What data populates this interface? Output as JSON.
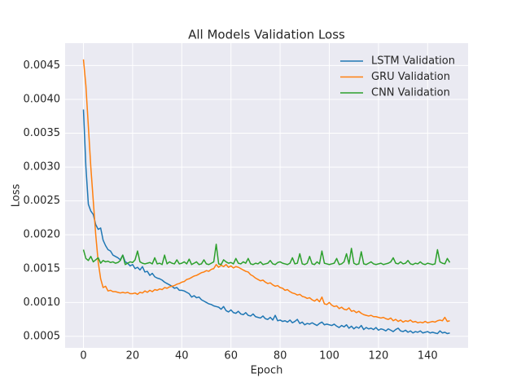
{
  "chart_data": {
    "type": "line",
    "title": "All Models Validation Loss",
    "x_label": "Epoch",
    "y_label": "Loss",
    "x": [
      0,
      1,
      2,
      3,
      4,
      5,
      6,
      7,
      8,
      9,
      10,
      11,
      12,
      13,
      14,
      15,
      16,
      17,
      18,
      19,
      20,
      21,
      22,
      23,
      24,
      25,
      26,
      27,
      28,
      29,
      30,
      31,
      32,
      33,
      34,
      35,
      36,
      37,
      38,
      39,
      40,
      41,
      42,
      43,
      44,
      45,
      46,
      47,
      48,
      49,
      50,
      51,
      52,
      53,
      54,
      55,
      56,
      57,
      58,
      59,
      60,
      61,
      62,
      63,
      64,
      65,
      66,
      67,
      68,
      69,
      70,
      71,
      72,
      73,
      74,
      75,
      76,
      77,
      78,
      79,
      80,
      81,
      82,
      83,
      84,
      85,
      86,
      87,
      88,
      89,
      90,
      91,
      92,
      93,
      94,
      95,
      96,
      97,
      98,
      99,
      100,
      101,
      102,
      103,
      104,
      105,
      106,
      107,
      108,
      109,
      110,
      111,
      112,
      113,
      114,
      115,
      116,
      117,
      118,
      119,
      120,
      121,
      122,
      123,
      124,
      125,
      126,
      127,
      128,
      129,
      130,
      131,
      132,
      133,
      134,
      135,
      136,
      137,
      138,
      139,
      140,
      141,
      142,
      143,
      144,
      145,
      146,
      147,
      148,
      149
    ],
    "series": [
      {
        "name": "LSTM Validation",
        "color": "#1f77b4",
        "values": [
          0.00385,
          0.003,
          0.00245,
          0.00235,
          0.0023,
          0.00215,
          0.00208,
          0.0021,
          0.00192,
          0.00184,
          0.00178,
          0.00176,
          0.0017,
          0.00168,
          0.00166,
          0.00163,
          0.0017,
          0.0016,
          0.00158,
          0.00154,
          0.00156,
          0.0015,
          0.00152,
          0.00148,
          0.00153,
          0.00145,
          0.00146,
          0.0014,
          0.00143,
          0.00138,
          0.00136,
          0.00135,
          0.00133,
          0.0013,
          0.00128,
          0.00126,
          0.00124,
          0.00121,
          0.00122,
          0.00118,
          0.00118,
          0.00117,
          0.00115,
          0.00113,
          0.00108,
          0.0011,
          0.00107,
          0.00108,
          0.00104,
          0.00102,
          0.001,
          0.00098,
          0.00097,
          0.00095,
          0.00094,
          0.00093,
          0.0009,
          0.00094,
          0.00088,
          0.00086,
          0.00089,
          0.00085,
          0.00084,
          0.00087,
          0.00083,
          0.00082,
          0.00085,
          0.00081,
          0.0008,
          0.00083,
          0.00079,
          0.00078,
          0.00077,
          0.0008,
          0.00076,
          0.00075,
          0.00078,
          0.00074,
          0.00081,
          0.00073,
          0.00074,
          0.00072,
          0.00073,
          0.00071,
          0.00074,
          0.0007,
          0.00072,
          0.00075,
          0.00069,
          0.00071,
          0.00067,
          0.00069,
          0.00068,
          0.0007,
          0.00068,
          0.00066,
          0.00069,
          0.00071,
          0.00067,
          0.00068,
          0.00067,
          0.00066,
          0.00068,
          0.00065,
          0.00063,
          0.00066,
          0.00064,
          0.00067,
          0.00062,
          0.00065,
          0.00061,
          0.00064,
          0.00062,
          0.00066,
          0.0006,
          0.00063,
          0.00061,
          0.00062,
          0.0006,
          0.00063,
          0.00059,
          0.00061,
          0.0006,
          0.00058,
          0.00061,
          0.00059,
          0.00057,
          0.0006,
          0.00062,
          0.00058,
          0.00057,
          0.00059,
          0.00056,
          0.00058,
          0.00055,
          0.00057,
          0.00056,
          0.00058,
          0.00055,
          0.00056,
          0.00057,
          0.00055,
          0.00056,
          0.00055,
          0.00054,
          0.00058,
          0.00055,
          0.00056,
          0.00054,
          0.00055
        ]
      },
      {
        "name": "GRU Validation",
        "color": "#ff7f0e",
        "values": [
          0.00459,
          0.0042,
          0.0036,
          0.003,
          0.0025,
          0.002,
          0.0016,
          0.00135,
          0.00122,
          0.00124,
          0.00117,
          0.00118,
          0.00116,
          0.00116,
          0.00115,
          0.00114,
          0.00115,
          0.00114,
          0.00115,
          0.00113,
          0.00113,
          0.00114,
          0.00112,
          0.00115,
          0.00114,
          0.00117,
          0.00115,
          0.00118,
          0.00116,
          0.00119,
          0.00118,
          0.0012,
          0.00119,
          0.00122,
          0.00121,
          0.00123,
          0.00124,
          0.00125,
          0.00127,
          0.00128,
          0.0013,
          0.00131,
          0.00134,
          0.00135,
          0.00137,
          0.00139,
          0.0014,
          0.00142,
          0.00144,
          0.00145,
          0.00147,
          0.00146,
          0.00149,
          0.0015,
          0.00156,
          0.00152,
          0.00155,
          0.00153,
          0.00156,
          0.00152,
          0.00154,
          0.00151,
          0.00153,
          0.00152,
          0.0015,
          0.00148,
          0.00146,
          0.00145,
          0.00141,
          0.00139,
          0.00136,
          0.00134,
          0.00132,
          0.00133,
          0.0013,
          0.00128,
          0.00129,
          0.00126,
          0.00124,
          0.00125,
          0.00122,
          0.00121,
          0.00118,
          0.00119,
          0.00116,
          0.00114,
          0.00113,
          0.00111,
          0.00112,
          0.00109,
          0.00108,
          0.00106,
          0.00107,
          0.00104,
          0.00102,
          0.00105,
          0.00101,
          0.00108,
          0.00098,
          0.00097,
          0.001,
          0.00096,
          0.00094,
          0.00095,
          0.00091,
          0.00093,
          0.0009,
          0.00089,
          0.00092,
          0.00087,
          0.00088,
          0.00085,
          0.00087,
          0.00084,
          0.00082,
          0.00081,
          0.0008,
          0.00081,
          0.00079,
          0.00079,
          0.00078,
          0.00077,
          0.00078,
          0.00076,
          0.00075,
          0.00077,
          0.00073,
          0.00075,
          0.00072,
          0.00074,
          0.00071,
          0.00073,
          0.00072,
          0.00074,
          0.00071,
          0.00072,
          0.0007,
          0.00071,
          0.0007,
          0.00072,
          0.0007,
          0.00071,
          0.00072,
          0.00071,
          0.00073,
          0.00074,
          0.00073,
          0.00078,
          0.00072,
          0.00073
        ]
      },
      {
        "name": "CNN Validation",
        "color": "#2ca02c",
        "values": [
          0.00178,
          0.00165,
          0.00162,
          0.00168,
          0.0016,
          0.00163,
          0.00166,
          0.00158,
          0.00162,
          0.0016,
          0.00161,
          0.00159,
          0.0016,
          0.00158,
          0.00159,
          0.00162,
          0.0017,
          0.00156,
          0.00158,
          0.0016,
          0.00159,
          0.00163,
          0.00176,
          0.0016,
          0.00158,
          0.00157,
          0.00158,
          0.00159,
          0.00157,
          0.00166,
          0.00157,
          0.00158,
          0.00156,
          0.0017,
          0.00157,
          0.0016,
          0.00158,
          0.00157,
          0.00163,
          0.00157,
          0.00158,
          0.0016,
          0.00157,
          0.00164,
          0.00156,
          0.00158,
          0.0016,
          0.00156,
          0.00157,
          0.00163,
          0.00157,
          0.00156,
          0.00158,
          0.0016,
          0.00186,
          0.00157,
          0.00156,
          0.00163,
          0.0016,
          0.00158,
          0.00159,
          0.00157,
          0.00165,
          0.00158,
          0.00157,
          0.0016,
          0.00158,
          0.00165,
          0.00157,
          0.00156,
          0.00158,
          0.00157,
          0.0016,
          0.00156,
          0.00157,
          0.00158,
          0.00162,
          0.00157,
          0.00156,
          0.00159,
          0.0016,
          0.00158,
          0.00157,
          0.00156,
          0.00158,
          0.00166,
          0.00157,
          0.00158,
          0.00172,
          0.00157,
          0.00156,
          0.00158,
          0.00168,
          0.00157,
          0.00156,
          0.0016,
          0.00157,
          0.00176,
          0.00158,
          0.00157,
          0.00156,
          0.00157,
          0.00158,
          0.00165,
          0.00156,
          0.00157,
          0.0016,
          0.00172,
          0.00157,
          0.0018,
          0.00158,
          0.00156,
          0.00157,
          0.00175,
          0.00157,
          0.00156,
          0.00158,
          0.0016,
          0.00157,
          0.00156,
          0.00157,
          0.00158,
          0.00156,
          0.00157,
          0.00158,
          0.0016,
          0.00166,
          0.00158,
          0.00157,
          0.0016,
          0.00157,
          0.00158,
          0.00162,
          0.00157,
          0.00156,
          0.00158,
          0.00157,
          0.0016,
          0.00157,
          0.00156,
          0.00158,
          0.00157,
          0.00156,
          0.00157,
          0.00178,
          0.0016,
          0.00158,
          0.00157,
          0.00165,
          0.00159
        ]
      }
    ],
    "xlim": [
      -7.45,
      156.45
    ],
    "xticks": [
      0,
      20,
      40,
      60,
      80,
      100,
      120,
      140
    ],
    "ylim": [
      0.00033,
      0.00483
    ],
    "yticks": [
      0.0005,
      {
        "value": 0.001,
        "label": "0.0010"
      },
      0.0015,
      {
        "value": 0.002,
        "label": "0.0020"
      },
      0.0025,
      {
        "value": 0.003,
        "label": "0.0030"
      },
      0.0035,
      {
        "value": 0.004,
        "label": "0.0040"
      },
      0.0045
    ],
    "grid": true,
    "legend": "upper-right",
    "background": "#eaeaf2"
  }
}
